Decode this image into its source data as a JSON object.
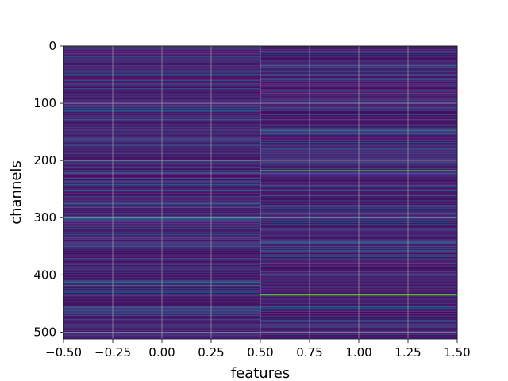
{
  "chart_data": {
    "type": "heatmap",
    "title": "",
    "xlabel": "features",
    "ylabel": "channels",
    "xlim": [
      -0.5,
      1.5
    ],
    "ylim": [
      512,
      0
    ],
    "y_inverted": true,
    "columns": [
      0,
      1
    ],
    "n_rows": 512,
    "colormap": "viridis",
    "grid": true,
    "grid_color": "#b0b0b0",
    "x_ticks": [
      -0.5,
      -0.25,
      0.0,
      0.25,
      0.5,
      0.75,
      1.0,
      1.25,
      1.5
    ],
    "x_tick_labels": [
      "−0.50",
      "−0.25",
      "0.00",
      "0.25",
      "0.50",
      "0.75",
      "1.00",
      "1.25",
      "1.50"
    ],
    "y_ticks": [
      0,
      100,
      200,
      300,
      400,
      500
    ],
    "y_tick_labels": [
      "0",
      "100",
      "200",
      "300",
      "400",
      "500"
    ],
    "highlights": [
      {
        "column": 0,
        "row": 50,
        "value": 0.38
      },
      {
        "column": 0,
        "row": 128,
        "value": 0.3
      },
      {
        "column": 0,
        "row": 212,
        "value": 0.42
      },
      {
        "column": 0,
        "row": 252,
        "value": 0.35
      },
      {
        "column": 0,
        "row": 275,
        "value": 0.4
      },
      {
        "column": 0,
        "row": 413,
        "value": 0.45
      },
      {
        "column": 0,
        "row": 418,
        "value": 0.42
      },
      {
        "column": 0,
        "row": 463,
        "value": 0.36
      },
      {
        "column": 1,
        "row": 83,
        "value": 0.45
      },
      {
        "column": 1,
        "row": 147,
        "value": 0.55
      },
      {
        "column": 1,
        "row": 218,
        "value": 0.92
      },
      {
        "column": 1,
        "row": 358,
        "value": 0.45
      },
      {
        "column": 1,
        "row": 380,
        "value": 0.5
      },
      {
        "column": 1,
        "row": 435,
        "value": 0.8
      }
    ]
  }
}
